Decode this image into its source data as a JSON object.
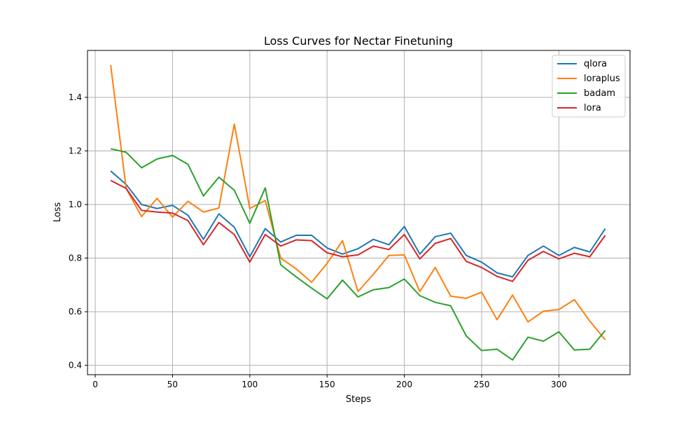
{
  "chart_data": {
    "type": "line",
    "title": "Loss Curves for Nectar Finetuning",
    "xlabel": "Steps",
    "ylabel": "Loss",
    "xlim": [
      -5,
      346
    ],
    "ylim": [
      0.365,
      1.575
    ],
    "xticks": [
      0,
      50,
      100,
      150,
      200,
      250,
      300
    ],
    "yticks": [
      0.4,
      0.6,
      0.8,
      1.0,
      1.2,
      1.4
    ],
    "grid": true,
    "legend_position": "top-right",
    "x": [
      10,
      20,
      30,
      40,
      50,
      60,
      70,
      80,
      90,
      100,
      110,
      120,
      130,
      140,
      150,
      160,
      170,
      180,
      190,
      200,
      210,
      220,
      230,
      240,
      250,
      260,
      270,
      280,
      290,
      300,
      310,
      320,
      330
    ],
    "series": [
      {
        "name": "qlora",
        "color": "#1f77b4",
        "values": [
          1.125,
          1.075,
          1.0,
          0.985,
          0.997,
          0.96,
          0.87,
          0.965,
          0.915,
          0.805,
          0.91,
          0.86,
          0.885,
          0.885,
          0.838,
          0.815,
          0.835,
          0.87,
          0.85,
          0.918,
          0.815,
          0.88,
          0.893,
          0.81,
          0.785,
          0.745,
          0.73,
          0.81,
          0.845,
          0.81,
          0.84,
          0.823,
          0.91
        ]
      },
      {
        "name": "loraplus",
        "color": "#ff7f0e",
        "values": [
          1.52,
          1.06,
          0.955,
          1.023,
          0.953,
          1.012,
          0.972,
          0.987,
          1.3,
          0.985,
          1.015,
          0.8,
          0.76,
          0.71,
          0.78,
          0.865,
          0.675,
          0.74,
          0.81,
          0.812,
          0.675,
          0.765,
          0.658,
          0.65,
          0.673,
          0.57,
          0.662,
          0.562,
          0.602,
          0.608,
          0.645,
          0.565,
          0.495
        ]
      },
      {
        "name": "badam",
        "color": "#2ca02c",
        "values": [
          1.208,
          1.195,
          1.137,
          1.17,
          1.183,
          1.15,
          1.032,
          1.102,
          1.053,
          0.93,
          1.062,
          0.775,
          0.73,
          0.688,
          0.648,
          0.718,
          0.655,
          0.682,
          0.69,
          0.722,
          0.66,
          0.635,
          0.622,
          0.51,
          0.455,
          0.46,
          0.42,
          0.505,
          0.49,
          0.525,
          0.457,
          0.46,
          0.53
        ]
      },
      {
        "name": "lora",
        "color": "#d62728",
        "values": [
          1.09,
          1.06,
          0.978,
          0.972,
          0.968,
          0.94,
          0.85,
          0.933,
          0.888,
          0.785,
          0.888,
          0.845,
          0.868,
          0.865,
          0.82,
          0.805,
          0.812,
          0.845,
          0.832,
          0.888,
          0.797,
          0.855,
          0.873,
          0.788,
          0.765,
          0.732,
          0.713,
          0.792,
          0.825,
          0.797,
          0.818,
          0.805,
          0.885
        ]
      }
    ]
  }
}
